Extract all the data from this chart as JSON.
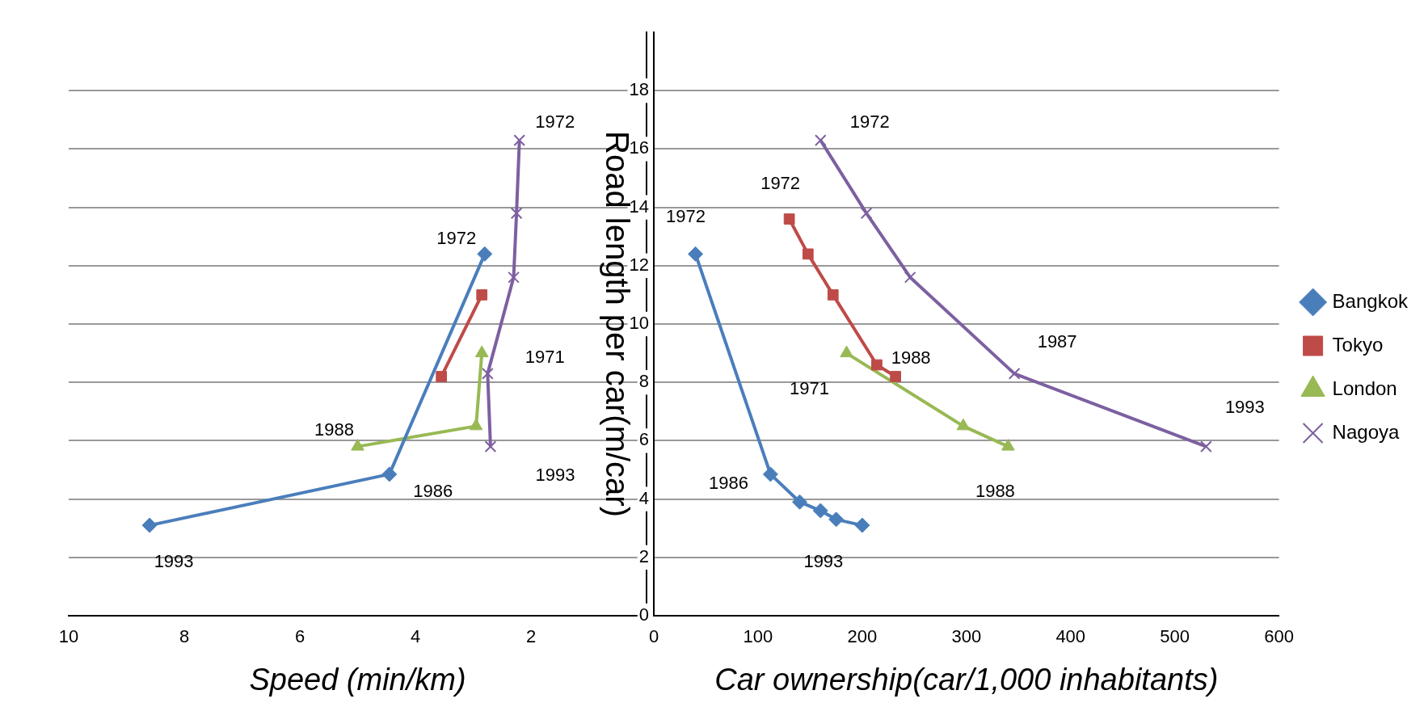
{
  "chart_data": [
    {
      "type": "line",
      "xlabel": "Speed (min/km)",
      "xlim": [
        10,
        0
      ],
      "xticks": [
        10,
        8,
        6,
        4,
        2
      ],
      "ylim": [
        0,
        20
      ],
      "yticks": [
        0,
        2,
        4,
        6,
        8,
        10,
        12,
        14,
        16,
        18
      ],
      "tick_labels": "x",
      "grid": "y",
      "legend": false,
      "series": [
        {
          "color": "#4a7ebb",
          "marker": "diamond",
          "x": [
            2.8,
            4.45,
            8.6
          ],
          "values": [
            12.4,
            4.85,
            3.1
          ]
        },
        {
          "color": "#be4b48",
          "marker": "square",
          "x": [
            2.85,
            3.55
          ],
          "values": [
            11.0,
            8.2
          ]
        },
        {
          "color": "#98b954",
          "marker": "triangle",
          "x": [
            2.85,
            2.95,
            5.0
          ],
          "values": [
            9.0,
            6.5,
            5.8
          ]
        },
        {
          "color": "#7d60a0",
          "marker": "cross",
          "x": [
            2.2,
            2.25,
            2.3,
            2.75,
            2.7
          ],
          "values": [
            16.3,
            13.8,
            11.6,
            8.3,
            5.8
          ]
        }
      ],
      "annotations": [
        {
          "text": "1972",
          "x": 2.2,
          "y": 16.3
        },
        {
          "text": "1972",
          "x": 2.8,
          "y": 12.4
        },
        {
          "text": "1971",
          "x": 2.85,
          "y": 9.0
        },
        {
          "text": "1988",
          "x": 5.0,
          "y": 5.8
        },
        {
          "text": "1993",
          "x": 2.7,
          "y": 5.8
        },
        {
          "text": "1986",
          "x": 4.45,
          "y": 4.85
        },
        {
          "text": "1993",
          "x": 8.6,
          "y": 3.1
        }
      ]
    },
    {
      "type": "line",
      "xlabel": "Car ownership(car/1,000 inhabitants)",
      "ylabel": "Road length per car(m/car)",
      "xlim": [
        0,
        600
      ],
      "xticks": [
        0,
        100,
        200,
        300,
        400,
        500,
        600
      ],
      "ylim": [
        0,
        20
      ],
      "yticks": [
        0,
        2,
        4,
        6,
        8,
        10,
        12,
        14,
        16,
        18
      ],
      "grid": "y",
      "legend": "right",
      "series": [
        {
          "name": "Bangkok",
          "color": "#4a7ebb",
          "marker": "diamond",
          "x": [
            40,
            112,
            140,
            160,
            175,
            200
          ],
          "values": [
            12.4,
            4.85,
            3.9,
            3.6,
            3.3,
            3.1
          ]
        },
        {
          "name": "Tokyo",
          "color": "#be4b48",
          "marker": "square",
          "x": [
            130,
            148,
            172,
            214,
            232
          ],
          "values": [
            13.6,
            12.4,
            11.0,
            8.6,
            8.2
          ]
        },
        {
          "name": "London",
          "color": "#98b954",
          "marker": "triangle",
          "x": [
            185,
            297,
            340
          ],
          "values": [
            9.0,
            6.5,
            5.8
          ]
        },
        {
          "name": "Nagoya",
          "color": "#7d60a0",
          "marker": "cross",
          "x": [
            160,
            204,
            246,
            346,
            530
          ],
          "values": [
            16.3,
            13.8,
            11.6,
            8.3,
            5.8
          ]
        }
      ],
      "annotations": [
        {
          "text": "1972",
          "x": 160,
          "y": 16.3
        },
        {
          "text": "1972",
          "x": 130,
          "y": 13.6
        },
        {
          "text": "1972",
          "x": 40,
          "y": 12.4
        },
        {
          "text": "1988",
          "x": 232,
          "y": 8.2
        },
        {
          "text": "1987",
          "x": 346,
          "y": 8.3
        },
        {
          "text": "1971",
          "x": 185,
          "y": 9.0
        },
        {
          "text": "1993",
          "x": 530,
          "y": 5.8
        },
        {
          "text": "1986",
          "x": 112,
          "y": 4.85
        },
        {
          "text": "1988",
          "x": 340,
          "y": 5.8
        },
        {
          "text": "1993",
          "x": 200,
          "y": 3.1
        }
      ]
    }
  ]
}
